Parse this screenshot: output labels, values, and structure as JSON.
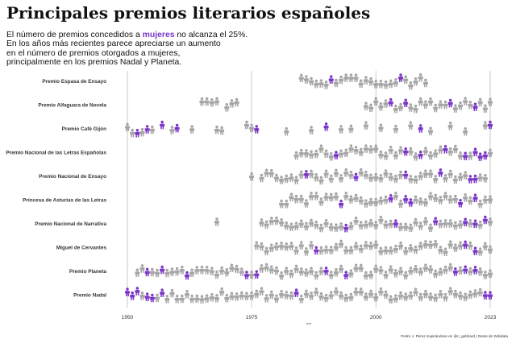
{
  "header": {
    "title": "Principales premios literarios españoles",
    "subtitle_pre": "El número de premios concedidos a ",
    "subtitle_highlight": "mujeres",
    "subtitle_post": " no alcanza el 25%.",
    "subtitle_line2": "En los años más recientes parece apreciarse un aumento",
    "subtitle_line3": "en el número de premios otorgados a mujeres,",
    "subtitle_line4": "principalmente en los premios Nadal y Planeta."
  },
  "caption": "Pedro J. Pérez inspirándose en @c_gebhard | Datos de Wikidata",
  "colors": {
    "men": "#a6a6a6",
    "women": "#7b35c8",
    "gridline": "#bdbdbd"
  },
  "icon": "person-icon",
  "chart_data": {
    "type": "pictogram-timeline",
    "xlabel": "year",
    "xlim": [
      1950,
      2023
    ],
    "x_ticks": [
      1950,
      1975,
      2000,
      2023
    ],
    "ylabel": "",
    "grid": true,
    "series": [
      {
        "name": "Premio Espasa de Ensayo",
        "men": [
          1985,
          1986,
          1987,
          1988,
          1989,
          1990,
          1992,
          1993,
          1994,
          1995,
          1996,
          1997,
          1998,
          1999,
          2000,
          2001,
          2002,
          2003,
          2004,
          2006,
          2007,
          2008,
          2009,
          2010
        ],
        "women": [
          1991,
          2005
        ]
      },
      {
        "name": "Premio Alfaguara de Novela",
        "men": [
          1965,
          1966,
          1967,
          1968,
          1970,
          1971,
          1972,
          1998,
          1999,
          2000,
          2001,
          2002,
          2004,
          2005,
          2007,
          2008,
          2009,
          2010,
          2011,
          2012,
          2013,
          2014,
          2016,
          2017,
          2018,
          2019,
          2021,
          2022,
          2023
        ],
        "women": [
          2003,
          2006,
          2015,
          2020
        ]
      },
      {
        "name": "Premio Café Gijón",
        "men": [
          1950,
          1951,
          1953,
          1955,
          1959,
          1963,
          1968,
          1969,
          1974,
          1975,
          1982,
          1987,
          1993,
          1995,
          1998,
          2001,
          2004,
          2007,
          2011,
          2015,
          2018,
          2022
        ],
        "women": [
          1952,
          1954,
          1957,
          1960,
          1976,
          1990,
          2009,
          2023
        ]
      },
      {
        "name": "Premio Nacional de las Letras Españolas",
        "men": [
          1984,
          1985,
          1986,
          1987,
          1988,
          1989,
          1990,
          1991,
          1993,
          1994,
          1995,
          1996,
          1997,
          1998,
          1999,
          2000,
          2001,
          2002,
          2003,
          2004,
          2005,
          2007,
          2008,
          2010,
          2011,
          2012,
          2013,
          2015,
          2016,
          2017,
          2019,
          2023
        ],
        "women": [
          1992,
          2006,
          2009,
          2014,
          2018,
          2020,
          2021,
          2022
        ]
      },
      {
        "name": "Premio Nacional de Ensayo",
        "men": [
          1975,
          1977,
          1978,
          1979,
          1980,
          1981,
          1982,
          1983,
          1984,
          1985,
          1987,
          1988,
          1989,
          1990,
          1991,
          1992,
          1993,
          1994,
          1995,
          1997,
          1998,
          1999,
          2000,
          2001,
          2002,
          2003,
          2004,
          2005,
          2007,
          2008,
          2009,
          2010,
          2011,
          2012,
          2014,
          2015,
          2016,
          2017,
          2018,
          2021,
          2022
        ],
        "women": [
          1986,
          1996,
          2006,
          2013,
          2019,
          2020
        ]
      },
      {
        "name": "Princesa de Asturias de las Letras",
        "men": [
          1981,
          1982,
          1983,
          1984,
          1985,
          1986,
          1987,
          1988,
          1989,
          1990,
          1991,
          1992,
          1994,
          1995,
          1996,
          1997,
          1998,
          1999,
          2000,
          2001,
          2002,
          2004,
          2005,
          2008,
          2009,
          2010,
          2011,
          2012,
          2013,
          2014,
          2015,
          2016,
          2018,
          2019,
          2021,
          2022,
          2023
        ],
        "women": [
          1993,
          2003,
          2006,
          2007,
          2017,
          2020
        ]
      },
      {
        "name": "Premio Nacional de Narrativa",
        "men": [
          1968,
          1977,
          1978,
          1979,
          1980,
          1981,
          1982,
          1983,
          1984,
          1985,
          1986,
          1987,
          1988,
          1989,
          1990,
          1991,
          1992,
          1993,
          1995,
          1996,
          1997,
          1998,
          1999,
          2000,
          2001,
          2002,
          2003,
          2005,
          2006,
          2007,
          2008,
          2009,
          2010,
          2011,
          2013,
          2014,
          2015,
          2016,
          2017,
          2019,
          2021,
          2023
        ],
        "women": [
          1994,
          2004,
          2012,
          2018,
          2020,
          2022
        ]
      },
      {
        "name": "Miguel de Cervantes",
        "men": [
          1976,
          1977,
          1978,
          1979,
          1980,
          1981,
          1982,
          1983,
          1984,
          1985,
          1986,
          1987,
          1989,
          1990,
          1991,
          1992,
          1993,
          1994,
          1995,
          1996,
          1997,
          1998,
          1999,
          2000,
          2001,
          2002,
          2003,
          2004,
          2005,
          2006,
          2007,
          2008,
          2009,
          2010,
          2011,
          2012,
          2013,
          2014,
          2015,
          2016,
          2017,
          2019,
          2021,
          2022,
          2023
        ],
        "women": [
          1988,
          2018,
          2020
        ]
      },
      {
        "name": "Premio Planeta",
        "men": [
          1952,
          1953,
          1955,
          1956,
          1958,
          1959,
          1960,
          1961,
          1963,
          1964,
          1965,
          1966,
          1967,
          1968,
          1969,
          1970,
          1971,
          1972,
          1973,
          1975,
          1977,
          1978,
          1979,
          1980,
          1981,
          1982,
          1983,
          1984,
          1985,
          1986,
          1987,
          1988,
          1989,
          1991,
          1992,
          1993,
          1995,
          1996,
          1997,
          1998,
          1999,
          2000,
          2001,
          2002,
          2003,
          2004,
          2005,
          2006,
          2007,
          2008,
          2009,
          2010,
          2011,
          2012,
          2013,
          2014,
          2015,
          2017,
          2019,
          2021,
          2022,
          2023
        ],
        "women": [
          1954,
          1957,
          1962,
          1974,
          1976,
          1990,
          1994,
          2016,
          2018,
          2020
        ]
      },
      {
        "name": "Premio Nadal",
        "men": [
          1953,
          1956,
          1958,
          1959,
          1960,
          1961,
          1962,
          1963,
          1964,
          1965,
          1966,
          1967,
          1968,
          1969,
          1970,
          1971,
          1972,
          1973,
          1974,
          1975,
          1976,
          1977,
          1978,
          1979,
          1980,
          1981,
          1982,
          1983,
          1985,
          1986,
          1987,
          1988,
          1989,
          1990,
          1991,
          1992,
          1993,
          1994,
          1995,
          1996,
          1997,
          1998,
          1999,
          2000,
          2001,
          2002,
          2003,
          2004,
          2005,
          2006,
          2007,
          2008,
          2009,
          2010,
          2011,
          2012,
          2013,
          2014,
          2015,
          2016,
          2017,
          2018,
          2019,
          2020,
          2021
        ],
        "women": [
          1950,
          1951,
          1952,
          1954,
          1955,
          1957,
          1984,
          2022,
          2023
        ]
      }
    ]
  }
}
